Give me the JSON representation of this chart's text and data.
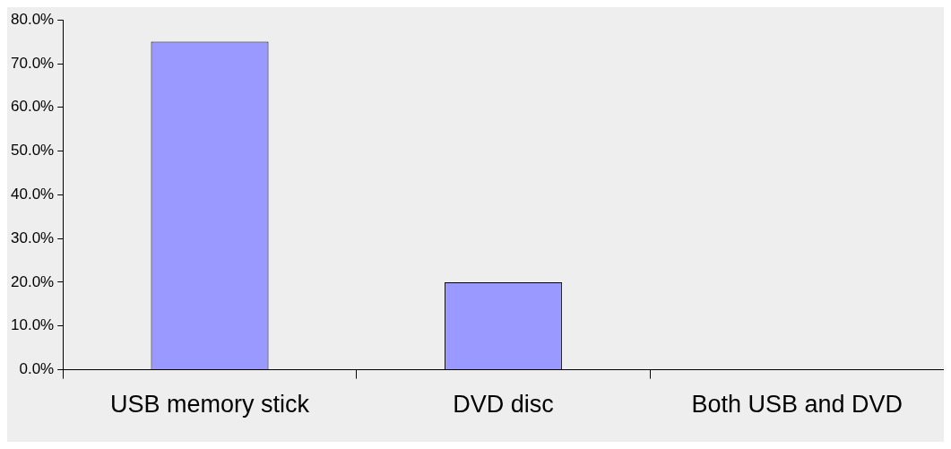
{
  "chart_data": {
    "type": "bar",
    "categories": [
      "USB memory stick",
      "DVD disc",
      "Both USB and DVD"
    ],
    "values": [
      75,
      20,
      0
    ],
    "color": "#9999ff",
    "ylim": [
      0,
      80
    ],
    "yticks": [
      {
        "value": 0,
        "label": "0.0%"
      },
      {
        "value": 10,
        "label": "10.0%"
      },
      {
        "value": 20,
        "label": "20.0%"
      },
      {
        "value": 30,
        "label": "30.0%"
      },
      {
        "value": 40,
        "label": "40.0%"
      },
      {
        "value": 50,
        "label": "50.0%"
      },
      {
        "value": 60,
        "label": "60.0%"
      },
      {
        "value": 70,
        "label": "70.0%"
      },
      {
        "value": 80,
        "label": "80.0%"
      }
    ],
    "grid": false,
    "legend": false
  }
}
